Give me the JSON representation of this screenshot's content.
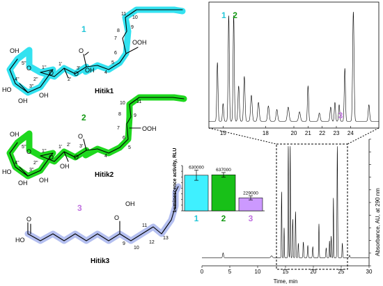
{
  "colors": {
    "cyan": "#33e2f0",
    "green": "#1ed81e",
    "lavender": "#b4bff0",
    "label1": "#22c6d8",
    "label2": "#119911",
    "label3": "#c070e0",
    "bar1": "#3ff0ff",
    "bar2": "#18c018",
    "bar3": "#cc99ff"
  },
  "compounds": {
    "c1": {
      "number": "1",
      "caption": "Hitik1",
      "chain_labels": [
        "11",
        "10",
        "9",
        "8",
        "7",
        "6",
        "5",
        "4",
        "1'",
        "2'",
        "3'"
      ],
      "sugar_labels": [
        "5''",
        "1''",
        "4''",
        "2''",
        "3''"
      ],
      "groups": [
        "OOH",
        "O",
        "O",
        "O",
        "O",
        "OH",
        "HO",
        "OH",
        "OH",
        "OH"
      ]
    },
    "c2": {
      "number": "2",
      "caption": "Hitik2",
      "chain_labels": [
        "11",
        "10",
        "9",
        "8",
        "7",
        "6",
        "5",
        "4",
        "1'",
        "2'",
        "3'"
      ],
      "sugar_labels": [
        "5''",
        "1''",
        "4''",
        "2''",
        "3''"
      ],
      "groups": [
        "OOH",
        "O",
        "O",
        "O",
        "O",
        "OH",
        "HO",
        "OH",
        "OH",
        "OH"
      ]
    },
    "c3": {
      "number": "3",
      "caption": "Hitik3",
      "chain_labels": [
        "9",
        "10",
        "11",
        "12",
        "13"
      ],
      "groups": [
        "O",
        "HO",
        "O",
        "OH"
      ]
    }
  },
  "chart_data": [
    {
      "type": "bar",
      "categories": [
        "1",
        "2",
        "3"
      ],
      "values": [
        630000,
        637000,
        229000
      ],
      "value_labels": [
        "630000",
        "637000",
        "229000"
      ],
      "errors": [
        90000,
        40000,
        35000
      ],
      "ylabel": "Luminescence activity, RLU",
      "ylim": [
        0,
        800000
      ]
    },
    {
      "type": "line",
      "name": "main-chromatogram",
      "xlabel": "Time, min",
      "ylabel": "Absorbance, AU, at 290 nm",
      "xlim": [
        0,
        30
      ],
      "xticks": [
        "0",
        "5",
        "10",
        "15",
        "20",
        "25",
        "30"
      ],
      "ylim": [
        0,
        1
      ],
      "baseline": 0.05,
      "peaks": [
        {
          "x": 3.8,
          "h": 0.04,
          "w": 0.12
        },
        {
          "x": 12.5,
          "h": 0.015,
          "w": 0.2
        },
        {
          "x": 14.3,
          "h": 0.55,
          "w": 0.07
        },
        {
          "x": 14.75,
          "h": 0.25,
          "w": 0.06
        },
        {
          "x": 15.5,
          "h": 0.93,
          "w": 0.07
        },
        {
          "x": 15.85,
          "h": 0.93,
          "w": 0.07
        },
        {
          "x": 16.3,
          "h": 0.32,
          "w": 0.08
        },
        {
          "x": 16.8,
          "h": 0.38,
          "w": 0.08
        },
        {
          "x": 17.3,
          "h": 0.12,
          "w": 0.08
        },
        {
          "x": 18.2,
          "h": 0.13,
          "w": 0.09
        },
        {
          "x": 19.0,
          "h": 0.1,
          "w": 0.09
        },
        {
          "x": 19.9,
          "h": 0.09,
          "w": 0.09
        },
        {
          "x": 21.0,
          "h": 0.28,
          "w": 0.07
        },
        {
          "x": 22.3,
          "h": 0.08,
          "w": 0.09
        },
        {
          "x": 22.9,
          "h": 0.14,
          "w": 0.07
        },
        {
          "x": 23.2,
          "h": 0.18,
          "w": 0.07
        },
        {
          "x": 23.6,
          "h": 0.5,
          "w": 0.06
        },
        {
          "x": 24.3,
          "h": 0.92,
          "w": 0.08
        },
        {
          "x": 25.2,
          "h": 0.12,
          "w": 0.08
        },
        {
          "x": 26.5,
          "h": 0.02,
          "w": 0.1
        }
      ]
    },
    {
      "type": "line",
      "name": "zoom-chromatogram",
      "xlim": [
        14,
        26
      ],
      "xticks": [
        "15",
        "18",
        "20",
        "21",
        "22",
        "23",
        "24"
      ],
      "ylim": [
        0,
        1
      ],
      "baseline": 0.04,
      "peak_labels": [
        "1",
        "2",
        "3"
      ],
      "peaks": [
        {
          "x": 14.6,
          "h": 0.5,
          "w": 0.06
        },
        {
          "x": 15.0,
          "h": 0.15,
          "w": 0.06
        },
        {
          "x": 15.4,
          "h": 0.9,
          "w": 0.06
        },
        {
          "x": 15.75,
          "h": 0.9,
          "w": 0.06
        },
        {
          "x": 16.1,
          "h": 0.3,
          "w": 0.07
        },
        {
          "x": 16.5,
          "h": 0.38,
          "w": 0.07
        },
        {
          "x": 17.0,
          "h": 0.22,
          "w": 0.08
        },
        {
          "x": 17.5,
          "h": 0.16,
          "w": 0.08
        },
        {
          "x": 18.2,
          "h": 0.13,
          "w": 0.08
        },
        {
          "x": 18.8,
          "h": 0.1,
          "w": 0.08
        },
        {
          "x": 19.6,
          "h": 0.12,
          "w": 0.09
        },
        {
          "x": 20.4,
          "h": 0.08,
          "w": 0.09
        },
        {
          "x": 21.0,
          "h": 0.3,
          "w": 0.06
        },
        {
          "x": 21.8,
          "h": 0.07,
          "w": 0.08
        },
        {
          "x": 22.6,
          "h": 0.12,
          "w": 0.07
        },
        {
          "x": 22.9,
          "h": 0.16,
          "w": 0.06
        },
        {
          "x": 23.2,
          "h": 0.14,
          "w": 0.06
        },
        {
          "x": 23.6,
          "h": 0.45,
          "w": 0.06
        },
        {
          "x": 24.2,
          "h": 0.93,
          "w": 0.07
        },
        {
          "x": 25.3,
          "h": 0.14,
          "w": 0.07
        }
      ]
    }
  ]
}
